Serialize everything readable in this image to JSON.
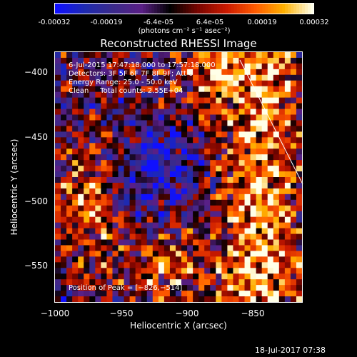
{
  "colorbar": {
    "ticks": [
      "-0.00032",
      "-0.00019",
      "-6.4e-05",
      "6.4e-05",
      "0.00019",
      "0.00032"
    ],
    "unit": "(photons cm⁻² s⁻¹ asec⁻²)",
    "colormap": [
      "#1010ff",
      "#1e2ab0",
      "#3b2a8a",
      "#5a1f86",
      "#000000",
      "#7a0500",
      "#cc1a00",
      "#ff5a00",
      "#ffb000",
      "#ffffe8"
    ]
  },
  "chart_data": {
    "type": "heatmap",
    "title": "Reconstructed RHESSI Image",
    "xlabel": "Heliocentric X (arcsec)",
    "ylabel": "Heliocentric Y (arcsec)",
    "xlim": [
      -1000,
      -812
    ],
    "ylim": [
      -578,
      -388
    ],
    "x_ticks": [
      "−1000",
      "−950",
      "−900",
      "−850"
    ],
    "y_ticks": [
      "−400",
      "−450",
      "−500",
      "−550"
    ],
    "x_tick_values": [
      -1000,
      -950,
      -900,
      -850
    ],
    "y_tick_values": [
      -400,
      -450,
      -500,
      -550
    ],
    "value_range": [
      -0.00032,
      0.00032
    ],
    "peak": [
      -826,
      -514
    ],
    "annotations": [
      "6-Jul-2015 17:47:18.000 to 17:57:18.000",
      "Detectors: 3F 5F 6F 7F 8F 9F; Att 0",
      "Energy Range: 25.0 - 50.0 keV",
      "Clean     Total counts: 2.55E+04"
    ],
    "peak_label": "Position of Peak = [−826,−514]"
  },
  "footer": {
    "timestamp": "18-Jul-2017 07:38"
  }
}
